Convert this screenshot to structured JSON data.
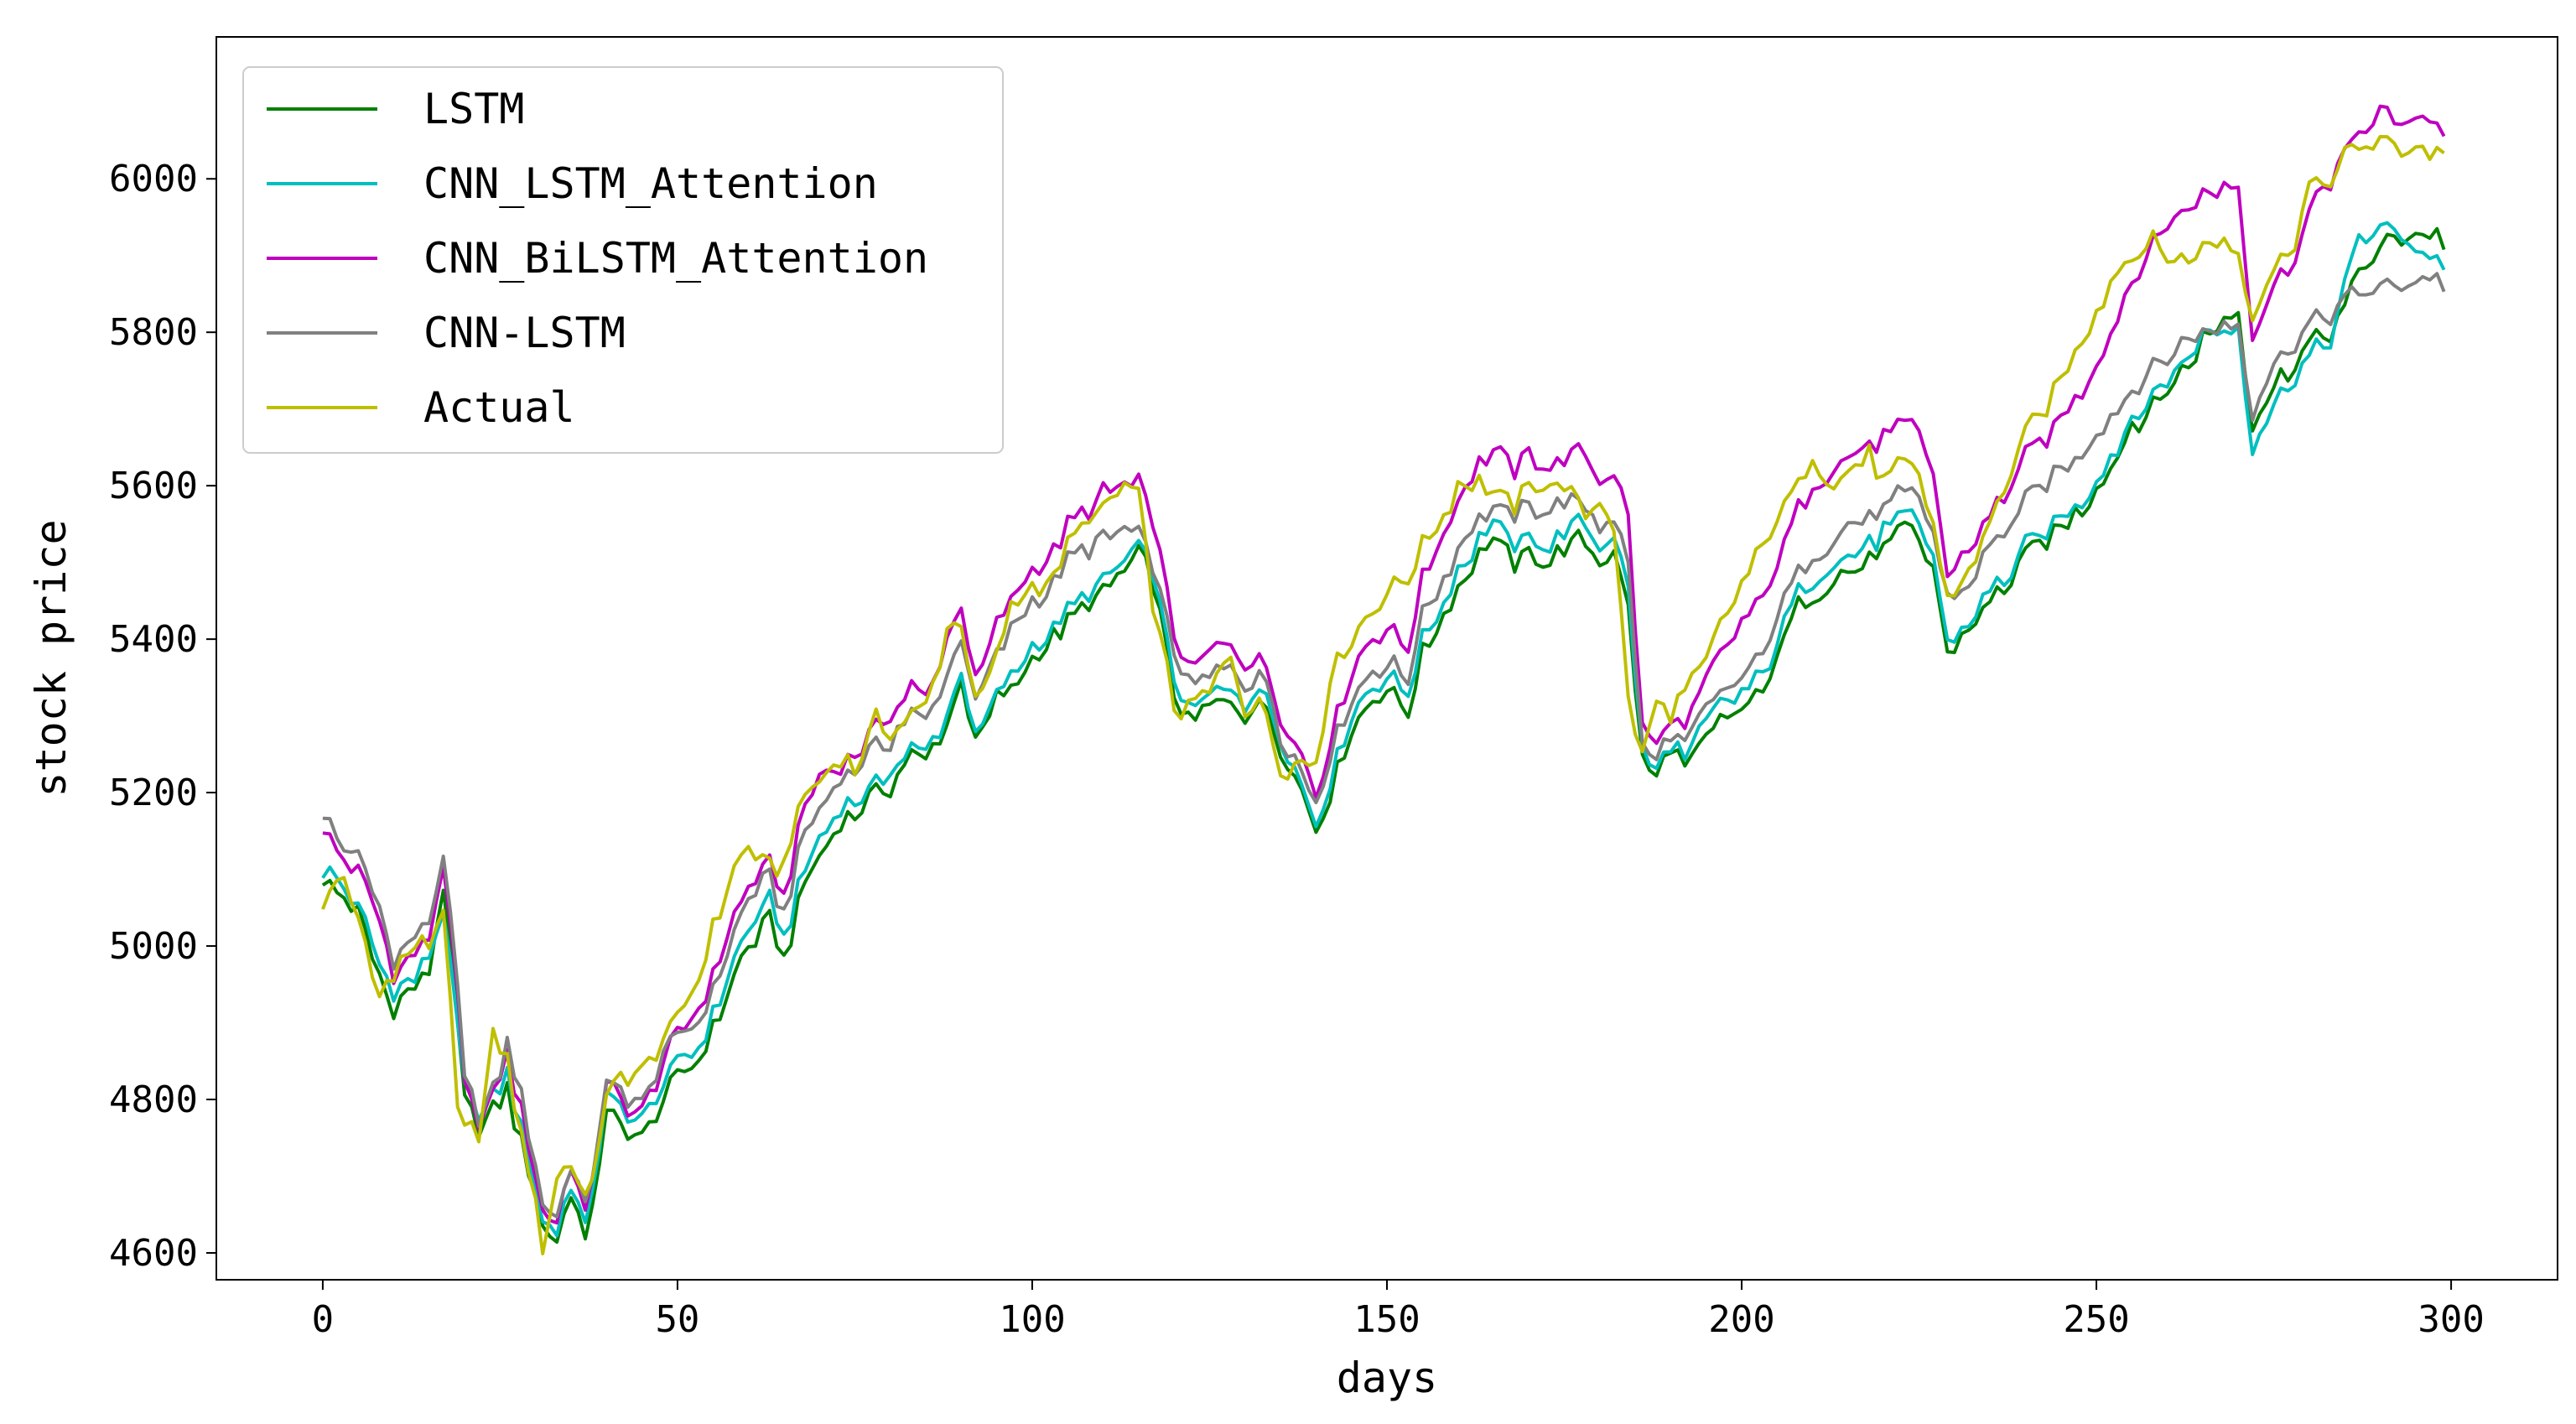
{
  "chart_data": {
    "type": "line",
    "title": "",
    "xlabel": "days",
    "ylabel": "stock price",
    "xlim": [
      -15,
      315
    ],
    "ylim": [
      4565,
      6185
    ],
    "xticks": [
      0,
      50,
      100,
      150,
      200,
      250,
      300
    ],
    "yticks": [
      4600,
      4800,
      5000,
      5200,
      5400,
      5600,
      5800,
      6000
    ],
    "xtick_labels": [
      "0",
      "50",
      "100",
      "150",
      "200",
      "250",
      "300"
    ],
    "ytick_labels": [
      "4600",
      "4800",
      "5000",
      "5200",
      "5400",
      "5600",
      "5800",
      "6000"
    ],
    "grid": false,
    "legend_position": "top-left",
    "n_points": 300,
    "anchor_days": [
      0,
      3,
      5,
      8,
      10,
      13,
      15,
      17,
      19,
      20,
      22,
      24,
      26,
      28,
      30,
      31,
      33,
      35,
      37,
      40,
      42,
      45,
      48,
      50,
      53,
      55,
      58,
      60,
      63,
      65,
      68,
      70,
      73,
      75,
      78,
      80,
      83,
      85,
      88,
      90,
      92,
      95,
      97,
      100,
      103,
      105,
      108,
      110,
      113,
      115,
      117,
      120,
      122,
      125,
      128,
      130,
      133,
      135,
      138,
      140,
      142,
      145,
      148,
      150,
      153,
      155,
      158,
      160,
      163,
      165,
      168,
      170,
      173,
      175,
      178,
      180,
      182,
      184,
      186,
      188,
      190,
      192,
      195,
      197,
      200,
      203,
      205,
      208,
      210,
      213,
      215,
      218,
      220,
      223,
      225,
      227,
      229,
      232,
      235,
      238,
      240,
      243,
      245,
      248,
      250,
      253,
      255,
      258,
      260,
      263,
      265,
      268,
      270,
      272,
      275,
      278,
      280,
      283,
      285,
      287,
      290,
      292,
      295,
      297,
      299
    ],
    "series": [
      {
        "name": "LSTM",
        "color": "#008000",
        "values": [
          5090,
          5060,
          5040,
          4960,
          4920,
          4950,
          4970,
          5080,
          4900,
          4800,
          4760,
          4790,
          4810,
          4740,
          4680,
          4630,
          4620,
          4680,
          4610,
          4780,
          4770,
          4750,
          4800,
          4830,
          4850,
          4890,
          4960,
          5000,
          5030,
          4980,
          5080,
          5120,
          5160,
          5170,
          5200,
          5210,
          5250,
          5240,
          5290,
          5350,
          5260,
          5320,
          5330,
          5380,
          5400,
          5420,
          5450,
          5460,
          5490,
          5510,
          5480,
          5330,
          5290,
          5310,
          5320,
          5300,
          5310,
          5260,
          5200,
          5150,
          5200,
          5280,
          5320,
          5330,
          5310,
          5380,
          5430,
          5470,
          5510,
          5530,
          5500,
          5510,
          5500,
          5520,
          5530,
          5500,
          5520,
          5440,
          5240,
          5220,
          5260,
          5230,
          5270,
          5290,
          5310,
          5330,
          5380,
          5440,
          5460,
          5480,
          5490,
          5500,
          5520,
          5540,
          5530,
          5490,
          5380,
          5410,
          5450,
          5480,
          5510,
          5530,
          5550,
          5570,
          5600,
          5640,
          5680,
          5700,
          5730,
          5760,
          5790,
          5820,
          5830,
          5680,
          5730,
          5760,
          5790,
          5800,
          5830,
          5880,
          5910,
          5920,
          5930,
          5930,
          5920
        ]
      },
      {
        "name": "CNN_LSTM_Attention",
        "color": "#00BFBF",
        "values": [
          5100,
          5080,
          5050,
          4980,
          4940,
          4960,
          4990,
          5050,
          4890,
          4810,
          4780,
          4800,
          4830,
          4760,
          4690,
          4640,
          4630,
          4690,
          4630,
          4800,
          4790,
          4770,
          4820,
          4850,
          4870,
          4910,
          4980,
          5020,
          5060,
          5010,
          5100,
          5140,
          5180,
          5190,
          5210,
          5230,
          5260,
          5250,
          5300,
          5360,
          5270,
          5330,
          5350,
          5390,
          5410,
          5440,
          5460,
          5470,
          5500,
          5520,
          5490,
          5350,
          5300,
          5330,
          5340,
          5320,
          5330,
          5270,
          5210,
          5160,
          5220,
          5300,
          5340,
          5350,
          5330,
          5400,
          5450,
          5490,
          5530,
          5550,
          5520,
          5530,
          5520,
          5540,
          5550,
          5520,
          5540,
          5460,
          5250,
          5230,
          5270,
          5240,
          5290,
          5310,
          5330,
          5350,
          5400,
          5460,
          5480,
          5500,
          5510,
          5520,
          5540,
          5560,
          5550,
          5510,
          5390,
          5420,
          5460,
          5490,
          5520,
          5540,
          5560,
          5580,
          5610,
          5650,
          5690,
          5710,
          5740,
          5770,
          5800,
          5800,
          5810,
          5650,
          5710,
          5740,
          5770,
          5790,
          5860,
          5920,
          5940,
          5930,
          5910,
          5900,
          5890
        ]
      },
      {
        "name": "CNN_BiLSTM_Attention",
        "color": "#BF00BF",
        "values": [
          5160,
          5110,
          5100,
          5030,
          4960,
          4990,
          5010,
          5110,
          4930,
          4810,
          4770,
          4800,
          4860,
          4780,
          4700,
          4650,
          4640,
          4720,
          4640,
          4820,
          4800,
          4780,
          4850,
          4880,
          4920,
          4960,
          5040,
          5080,
          5110,
          5060,
          5180,
          5220,
          5240,
          5250,
          5280,
          5300,
          5340,
          5320,
          5400,
          5450,
          5340,
          5420,
          5450,
          5490,
          5510,
          5550,
          5570,
          5590,
          5600,
          5600,
          5560,
          5410,
          5360,
          5380,
          5400,
          5370,
          5370,
          5300,
          5250,
          5200,
          5270,
          5360,
          5400,
          5410,
          5390,
          5480,
          5540,
          5580,
          5630,
          5650,
          5620,
          5640,
          5620,
          5640,
          5640,
          5610,
          5620,
          5560,
          5280,
          5260,
          5300,
          5280,
          5350,
          5380,
          5420,
          5450,
          5500,
          5570,
          5600,
          5620,
          5640,
          5650,
          5660,
          5680,
          5670,
          5620,
          5480,
          5520,
          5560,
          5600,
          5640,
          5660,
          5690,
          5720,
          5760,
          5820,
          5870,
          5910,
          5940,
          5960,
          5980,
          5990,
          5990,
          5800,
          5860,
          5900,
          5960,
          6000,
          6030,
          6060,
          6090,
          6070,
          6080,
          6080,
          6060
        ]
      },
      {
        "name": "CNN-LSTM",
        "color": "#808080",
        "values": [
          5170,
          5130,
          5120,
          5050,
          4980,
          5010,
          5030,
          5120,
          4940,
          4820,
          4780,
          4810,
          4870,
          4800,
          4720,
          4660,
          4650,
          4720,
          4650,
          4820,
          4810,
          4790,
          4860,
          4880,
          4900,
          4940,
          5020,
          5060,
          5090,
          5040,
          5150,
          5180,
          5220,
          5230,
          5260,
          5270,
          5310,
          5290,
          5350,
          5410,
          5310,
          5380,
          5410,
          5450,
          5470,
          5500,
          5520,
          5530,
          5540,
          5540,
          5500,
          5380,
          5340,
          5350,
          5370,
          5340,
          5350,
          5280,
          5230,
          5190,
          5250,
          5320,
          5360,
          5370,
          5350,
          5430,
          5480,
          5520,
          5560,
          5570,
          5560,
          5570,
          5570,
          5580,
          5570,
          5550,
          5560,
          5500,
          5260,
          5240,
          5280,
          5260,
          5310,
          5330,
          5350,
          5380,
          5430,
          5490,
          5510,
          5530,
          5550,
          5560,
          5570,
          5590,
          5580,
          5540,
          5450,
          5470,
          5520,
          5550,
          5580,
          5600,
          5620,
          5640,
          5670,
          5700,
          5730,
          5750,
          5770,
          5790,
          5800,
          5810,
          5810,
          5700,
          5760,
          5790,
          5810,
          5820,
          5840,
          5850,
          5860,
          5860,
          5870,
          5870,
          5865
        ]
      },
      {
        "name": "Actual",
        "color": "#BFBF00",
        "values": [
          5060,
          5090,
          5030,
          4930,
          4970,
          5000,
          5000,
          5050,
          4780,
          4760,
          4760,
          4880,
          4850,
          4750,
          4680,
          4600,
          4700,
          4720,
          4660,
          4800,
          4830,
          4840,
          4880,
          4900,
          4960,
          5020,
          5100,
          5130,
          5100,
          5110,
          5200,
          5210,
          5250,
          5230,
          5300,
          5280,
          5300,
          5310,
          5410,
          5420,
          5310,
          5380,
          5440,
          5470,
          5480,
          5520,
          5560,
          5570,
          5600,
          5580,
          5450,
          5310,
          5310,
          5330,
          5380,
          5310,
          5310,
          5230,
          5240,
          5240,
          5350,
          5400,
          5440,
          5460,
          5480,
          5520,
          5560,
          5600,
          5610,
          5590,
          5570,
          5600,
          5600,
          5600,
          5560,
          5580,
          5550,
          5320,
          5250,
          5320,
          5300,
          5330,
          5370,
          5420,
          5470,
          5520,
          5560,
          5600,
          5640,
          5600,
          5620,
          5640,
          5600,
          5630,
          5610,
          5550,
          5450,
          5490,
          5550,
          5620,
          5670,
          5700,
          5740,
          5790,
          5830,
          5880,
          5900,
          5920,
          5900,
          5890,
          5910,
          5920,
          5900,
          5830,
          5880,
          5920,
          5990,
          6000,
          6030,
          6040,
          6050,
          6040,
          6040,
          6035,
          6040
        ]
      }
    ]
  }
}
